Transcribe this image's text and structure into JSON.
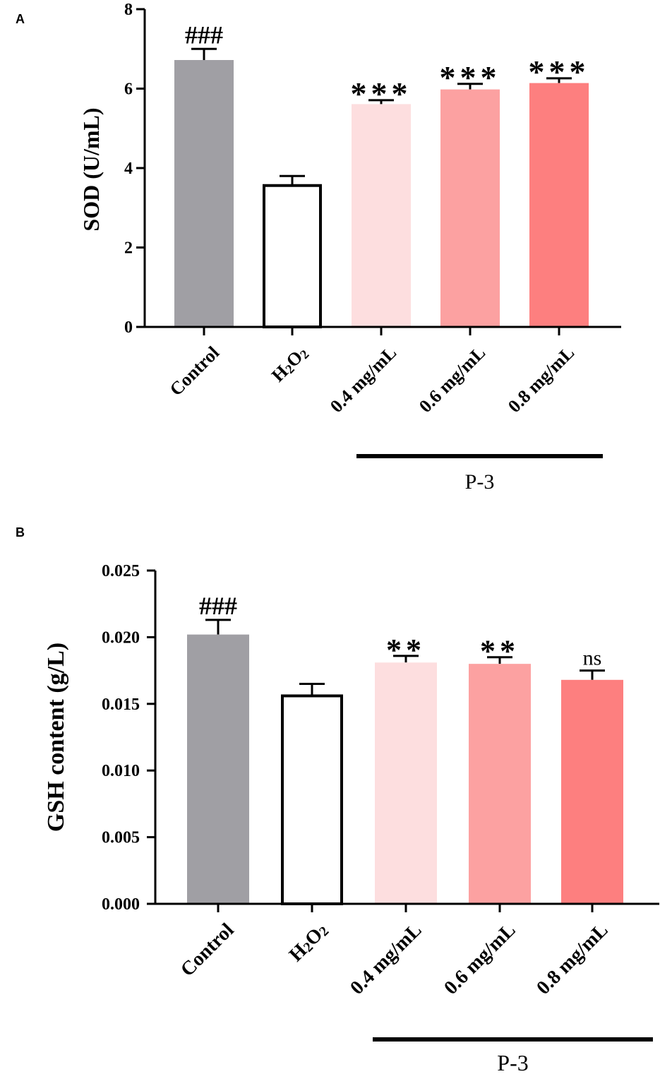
{
  "colors": {
    "control": "#A09FA4",
    "h2o2": "#FFFFFF",
    "dose_04": "#FDDEDF",
    "dose_06": "#FCA1A1",
    "dose_08": "#FD7F7F",
    "stroke": "#000000"
  },
  "chart_data": [
    {
      "panel": "A",
      "type": "bar",
      "ylabel": "SOD (U/mL)",
      "ylim": [
        0,
        8
      ],
      "yticks": [
        0,
        2,
        4,
        6,
        8
      ],
      "ytick_labels": [
        "0",
        "2",
        "4",
        "6",
        "8"
      ],
      "categories": [
        "Control",
        "H2O2",
        "0.4 mg/mL",
        "0.6 mg/mL",
        "0.8 mg/mL"
      ],
      "category_labels": [
        {
          "main": "Control",
          "parts": []
        },
        {
          "main": "",
          "parts": [
            "H",
            "2",
            "O",
            "2"
          ]
        },
        {
          "main": "0.4 mg/mL",
          "parts": []
        },
        {
          "main": "0.6 mg/mL",
          "parts": []
        },
        {
          "main": "0.8 mg/mL",
          "parts": []
        }
      ],
      "values": [
        6.72,
        3.56,
        5.61,
        5.98,
        6.14
      ],
      "errors": [
        0.28,
        0.24,
        0.1,
        0.14,
        0.12
      ],
      "significance": [
        "###",
        "",
        "***",
        "***",
        "***"
      ],
      "group_bracket": {
        "label": "P-3",
        "from_category": 2,
        "to_category": 4
      }
    },
    {
      "panel": "B",
      "type": "bar",
      "ylabel": "GSH content (g/L)",
      "ylim": [
        0,
        0.025
      ],
      "yticks": [
        0,
        0.005,
        0.01,
        0.015,
        0.02,
        0.025
      ],
      "ytick_labels": [
        "0.000",
        "0.005",
        "0.010",
        "0.015",
        "0.020",
        "0.025"
      ],
      "categories": [
        "Control",
        "H2O2",
        "0.4 mg/mL",
        "0.6 mg/mL",
        "0.8 mg/mL"
      ],
      "category_labels": [
        {
          "main": "Control",
          "parts": []
        },
        {
          "main": "",
          "parts": [
            "H",
            "2",
            "O",
            "2"
          ]
        },
        {
          "main": "0.4 mg/mL",
          "parts": []
        },
        {
          "main": "0.6 mg/mL",
          "parts": []
        },
        {
          "main": "0.8 mg/mL",
          "parts": []
        }
      ],
      "values": [
        0.0202,
        0.0156,
        0.0181,
        0.018,
        0.0168
      ],
      "errors": [
        0.0011,
        0.0009,
        0.0005,
        0.0005,
        0.0007
      ],
      "significance": [
        "###",
        "",
        "**",
        "**",
        "ns"
      ],
      "group_bracket": {
        "label": "P-3",
        "from_category": 2,
        "to_category": 4
      }
    }
  ]
}
